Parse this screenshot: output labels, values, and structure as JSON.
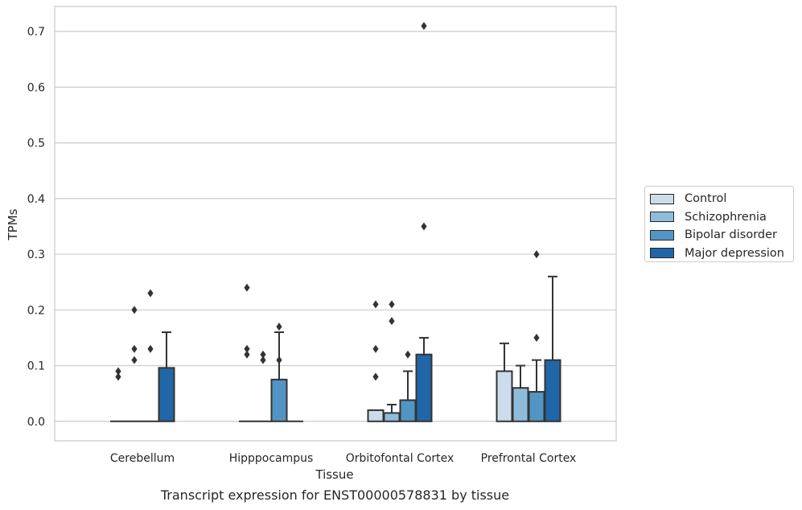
{
  "chart_data": {
    "type": "bar",
    "title": "",
    "caption": "Transcript expression for ENST00000578831 by tissue",
    "xlabel": "Tissue",
    "ylabel": "TPMs",
    "ylim": [
      -0.035,
      0.745
    ],
    "yticks": [
      "0.0",
      "0.1",
      "0.2",
      "0.3",
      "0.4",
      "0.5",
      "0.6",
      "0.7"
    ],
    "grid": true,
    "legend_position": "right",
    "categories": [
      "Cerebellum",
      "Hipppocampus",
      "Orbitofontal Cortex",
      "Prefrontal Cortex"
    ],
    "series": [
      {
        "name": "Control",
        "color": "#cddcec",
        "values": [
          0,
          0,
          0.02,
          0.09
        ],
        "errors_upper": [
          null,
          null,
          null,
          0.14
        ],
        "outliers": [
          [
            0.08,
            0.09
          ],
          [
            0.24,
            0.12,
            0.13
          ],
          [
            0.08,
            0.13,
            0.21
          ],
          []
        ]
      },
      {
        "name": "Schizophrenia",
        "color": "#90bcdb",
        "values": [
          0,
          0,
          0.015,
          0.06
        ],
        "errors_upper": [
          null,
          null,
          0.03,
          0.1
        ],
        "outliers": [
          [
            0.11,
            0.13,
            0.2
          ],
          [
            0.11,
            0.12
          ],
          [
            0.18,
            0.21
          ],
          []
        ]
      },
      {
        "name": "Bipolar disorder",
        "color": "#5295c5",
        "values": [
          0,
          0.075,
          0.038,
          0.053
        ],
        "errors_upper": [
          null,
          0.16,
          0.09,
          0.11
        ],
        "outliers": [
          [
            0.13,
            0.23
          ],
          [
            0.11,
            0.17
          ],
          [
            0.12
          ],
          [
            0.15,
            0.3
          ]
        ]
      },
      {
        "name": "Major depression",
        "color": "#2166a6",
        "values": [
          0.096,
          0,
          0.12,
          0.11
        ],
        "errors_upper": [
          0.16,
          null,
          0.15,
          0.26
        ],
        "outliers": [
          [],
          [],
          [
            0.35,
            0.71
          ],
          []
        ]
      }
    ]
  }
}
